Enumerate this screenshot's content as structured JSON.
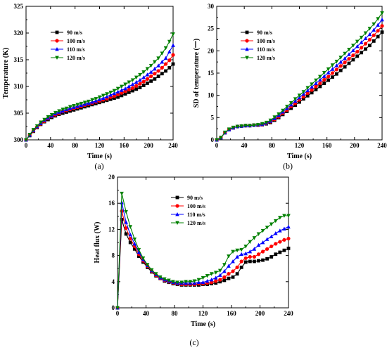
{
  "chart_data": [
    {
      "panel_label": "(a)",
      "type": "line",
      "xlabel": "Time (s)",
      "ylabel": "Temperature (K)",
      "xlim": [
        0,
        240
      ],
      "ylim": [
        300,
        325
      ],
      "xticks": [
        0,
        40,
        80,
        120,
        160,
        200,
        240
      ],
      "yticks": [
        300,
        305,
        310,
        315,
        320,
        325
      ],
      "legend_position": "top-left",
      "x": [
        0,
        6,
        12,
        18,
        24,
        30,
        36,
        42,
        48,
        54,
        60,
        66,
        72,
        78,
        84,
        90,
        96,
        102,
        108,
        114,
        120,
        126,
        132,
        138,
        144,
        150,
        156,
        162,
        168,
        174,
        180,
        186,
        192,
        198,
        204,
        210,
        216,
        222,
        228,
        234,
        240
      ],
      "series": [
        {
          "name": "90 m/s",
          "color": "#000000",
          "marker": "square",
          "values": [
            300.0,
            300.8,
            301.6,
            302.3,
            302.9,
            303.4,
            303.8,
            304.2,
            304.5,
            304.8,
            305.0,
            305.2,
            305.4,
            305.6,
            305.8,
            306.0,
            306.2,
            306.4,
            306.6,
            306.8,
            307.0,
            307.2,
            307.4,
            307.6,
            307.8,
            308.0,
            308.3,
            308.6,
            308.9,
            309.2,
            309.5,
            309.8,
            310.2,
            310.6,
            311.0,
            311.4,
            311.9,
            312.4,
            312.9,
            313.5,
            314.2
          ]
        },
        {
          "name": "100 m/s",
          "color": "#ff0000",
          "marker": "circle",
          "values": [
            300.0,
            300.9,
            301.7,
            302.4,
            303.0,
            303.5,
            304.0,
            304.4,
            304.7,
            305.0,
            305.3,
            305.5,
            305.7,
            305.9,
            306.1,
            306.3,
            306.5,
            306.7,
            306.9,
            307.1,
            307.3,
            307.5,
            307.7,
            308.0,
            308.2,
            308.5,
            308.8,
            309.1,
            309.4,
            309.7,
            310.1,
            310.5,
            310.9,
            311.4,
            311.9,
            312.4,
            312.9,
            313.5,
            314.2,
            314.9,
            315.9
          ]
        },
        {
          "name": "110 m/s",
          "color": "#0000ff",
          "marker": "triangle-up",
          "values": [
            300.0,
            300.9,
            301.8,
            302.5,
            303.1,
            303.7,
            304.1,
            304.5,
            304.9,
            305.2,
            305.4,
            305.7,
            305.9,
            306.1,
            306.3,
            306.5,
            306.7,
            306.9,
            307.1,
            307.3,
            307.6,
            307.8,
            308.1,
            308.4,
            308.7,
            309.0,
            309.3,
            309.6,
            310.0,
            310.4,
            310.8,
            311.2,
            311.7,
            312.2,
            312.7,
            313.3,
            313.9,
            314.6,
            315.3,
            316.5,
            317.7
          ]
        },
        {
          "name": "120 m/s",
          "color": "#008000",
          "marker": "triangle-down",
          "values": [
            300.0,
            301.0,
            301.9,
            302.6,
            303.3,
            303.8,
            304.3,
            304.7,
            305.1,
            305.4,
            305.7,
            305.9,
            306.2,
            306.4,
            306.6,
            306.8,
            307.0,
            307.2,
            307.5,
            307.7,
            308.0,
            308.3,
            308.6,
            308.9,
            309.2,
            309.6,
            310.0,
            310.4,
            310.8,
            311.2,
            311.7,
            312.2,
            312.7,
            313.3,
            313.9,
            314.6,
            315.3,
            316.2,
            317.2,
            318.4,
            319.8
          ]
        }
      ]
    },
    {
      "panel_label": "(b)",
      "type": "line",
      "xlabel": "Time (s)",
      "ylabel": "SD of temperature (一)",
      "xlim": [
        0,
        240
      ],
      "ylim": [
        0,
        30
      ],
      "xticks": [
        0,
        40,
        80,
        120,
        160,
        200,
        240
      ],
      "yticks": [
        0,
        5,
        10,
        15,
        20,
        25,
        30
      ],
      "legend_position": "top-left",
      "x": [
        0,
        6,
        12,
        18,
        24,
        30,
        36,
        42,
        48,
        54,
        60,
        66,
        72,
        78,
        84,
        90,
        96,
        102,
        108,
        114,
        120,
        126,
        132,
        138,
        144,
        150,
        156,
        162,
        168,
        174,
        180,
        186,
        192,
        198,
        204,
        210,
        216,
        222,
        228,
        234,
        240
      ],
      "series": [
        {
          "name": "90 m/s",
          "color": "#000000",
          "marker": "square",
          "values": [
            0.0,
            0.5,
            1.6,
            2.3,
            2.7,
            3.0,
            3.1,
            3.2,
            3.2,
            3.3,
            3.3,
            3.4,
            3.6,
            3.9,
            4.4,
            5.0,
            5.7,
            6.4,
            7.1,
            7.8,
            8.5,
            9.2,
            9.9,
            10.6,
            11.3,
            12.0,
            12.7,
            13.4,
            14.1,
            14.8,
            15.6,
            16.4,
            17.2,
            18.0,
            18.8,
            19.6,
            20.4,
            21.2,
            22.2,
            23.2,
            24.2
          ]
        },
        {
          "name": "100 m/s",
          "color": "#ff0000",
          "marker": "circle",
          "values": [
            0.0,
            0.5,
            1.6,
            2.3,
            2.7,
            3.0,
            3.1,
            3.2,
            3.2,
            3.3,
            3.3,
            3.4,
            3.7,
            4.1,
            4.6,
            5.2,
            6.0,
            6.7,
            7.5,
            8.2,
            9.0,
            9.7,
            10.5,
            11.2,
            12.0,
            12.7,
            13.5,
            14.2,
            15.0,
            15.8,
            16.6,
            17.4,
            18.2,
            19.0,
            19.8,
            20.7,
            21.6,
            22.5,
            23.5,
            24.5,
            25.6
          ]
        },
        {
          "name": "110 m/s",
          "color": "#0000ff",
          "marker": "triangle-up",
          "values": [
            0.0,
            0.5,
            1.6,
            2.3,
            2.7,
            3.0,
            3.1,
            3.2,
            3.2,
            3.3,
            3.4,
            3.5,
            3.8,
            4.2,
            4.8,
            5.5,
            6.3,
            7.1,
            7.9,
            8.7,
            9.5,
            10.3,
            11.1,
            11.9,
            12.7,
            13.5,
            14.3,
            15.1,
            15.9,
            16.7,
            17.5,
            18.3,
            19.2,
            20.1,
            21.0,
            21.9,
            22.8,
            23.7,
            24.7,
            25.8,
            27.0
          ]
        },
        {
          "name": "120 m/s",
          "color": "#008000",
          "marker": "triangle-down",
          "values": [
            0.0,
            0.5,
            1.7,
            2.4,
            2.8,
            3.0,
            3.1,
            3.2,
            3.2,
            3.3,
            3.4,
            3.6,
            3.9,
            4.4,
            5.1,
            5.8,
            6.6,
            7.5,
            8.3,
            9.2,
            10.0,
            10.8,
            11.7,
            12.5,
            13.4,
            14.2,
            15.1,
            15.9,
            16.8,
            17.6,
            18.5,
            19.4,
            20.3,
            21.2,
            22.1,
            23.0,
            24.0,
            25.0,
            26.0,
            27.2,
            28.5
          ]
        }
      ]
    },
    {
      "panel_label": "(c)",
      "type": "line",
      "xlabel": "Time (s)",
      "ylabel": "Heat flux (W)",
      "xlim": [
        0,
        240
      ],
      "ylim": [
        0,
        20
      ],
      "xticks": [
        0,
        40,
        80,
        120,
        160,
        200,
        240
      ],
      "yticks": [
        0,
        4,
        8,
        12,
        16,
        20
      ],
      "legend_position": "top-center",
      "x": [
        0,
        6,
        12,
        18,
        24,
        30,
        36,
        42,
        48,
        54,
        60,
        66,
        72,
        78,
        84,
        90,
        96,
        102,
        108,
        114,
        120,
        126,
        132,
        138,
        144,
        150,
        156,
        162,
        168,
        174,
        180,
        186,
        192,
        198,
        204,
        210,
        216,
        222,
        228,
        234,
        240
      ],
      "series": [
        {
          "name": "90 m/s",
          "color": "#000000",
          "marker": "square",
          "values": [
            0.0,
            13.5,
            11.3,
            10.0,
            9.0,
            7.9,
            7.0,
            6.2,
            5.5,
            4.9,
            4.5,
            4.1,
            3.9,
            3.7,
            3.6,
            3.5,
            3.5,
            3.5,
            3.5,
            3.5,
            3.6,
            3.6,
            3.7,
            3.8,
            4.0,
            4.2,
            4.5,
            4.7,
            5.2,
            6.2,
            7.0,
            7.1,
            7.1,
            7.2,
            7.3,
            7.5,
            7.8,
            8.2,
            8.5,
            8.8,
            9.1
          ]
        },
        {
          "name": "100 m/s",
          "color": "#ff0000",
          "marker": "circle",
          "values": [
            0.0,
            14.8,
            12.2,
            10.6,
            9.4,
            8.2,
            7.2,
            6.4,
            5.6,
            5.0,
            4.5,
            4.2,
            4.0,
            3.8,
            3.7,
            3.6,
            3.6,
            3.6,
            3.6,
            3.7,
            3.7,
            3.8,
            3.9,
            4.1,
            4.3,
            4.7,
            5.2,
            5.6,
            6.2,
            7.1,
            7.6,
            7.8,
            7.8,
            8.2,
            8.6,
            9.0,
            9.4,
            9.8,
            10.1,
            10.4,
            10.6
          ]
        },
        {
          "name": "110 m/s",
          "color": "#0000ff",
          "marker": "triangle-up",
          "values": [
            0.0,
            16.1,
            13.1,
            11.2,
            9.8,
            8.5,
            7.4,
            6.5,
            5.7,
            5.1,
            4.6,
            4.3,
            4.1,
            3.9,
            3.8,
            3.8,
            3.8,
            3.8,
            3.8,
            3.9,
            3.9,
            4.1,
            4.3,
            4.6,
            5.0,
            5.6,
            6.4,
            7.1,
            7.8,
            8.2,
            8.3,
            8.6,
            9.0,
            9.6,
            10.0,
            10.5,
            10.9,
            11.4,
            11.8,
            12.1,
            12.4
          ]
        },
        {
          "name": "120 m/s",
          "color": "#008000",
          "marker": "triangle-down",
          "values": [
            0.0,
            17.5,
            14.7,
            12.4,
            10.5,
            8.9,
            7.6,
            6.6,
            5.8,
            5.2,
            4.7,
            4.4,
            4.2,
            4.0,
            3.9,
            3.9,
            4.0,
            4.0,
            4.1,
            4.3,
            4.6,
            4.9,
            5.2,
            5.4,
            5.7,
            6.6,
            7.9,
            8.6,
            8.8,
            8.9,
            9.4,
            10.1,
            10.7,
            11.3,
            11.8,
            12.3,
            12.8,
            13.3,
            13.8,
            14.1,
            14.1
          ]
        }
      ]
    }
  ]
}
